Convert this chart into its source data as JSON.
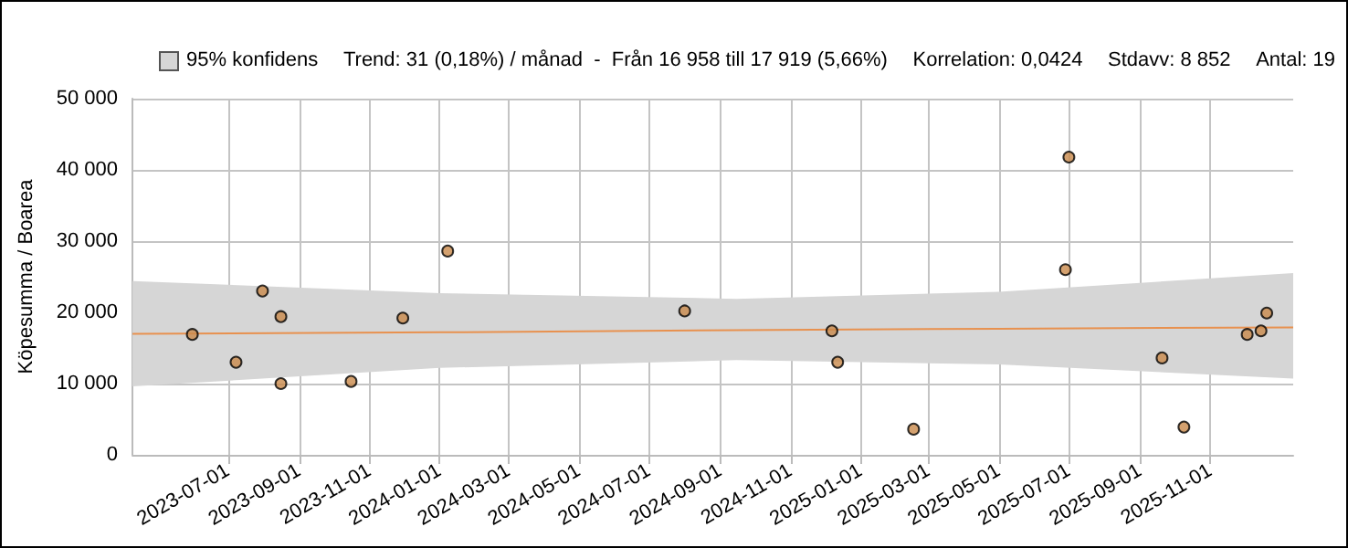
{
  "chart_data": {
    "type": "scatter",
    "ylabel": "Köpesumma / Boarea",
    "annotations": [
      "Trend: 31 (0,18%) / månad  -  Från 16 958 till 17 919 (5,66%)",
      "Korrelation: 0,0424",
      "Stdavv: 8 852",
      "Antal: 19"
    ],
    "series": [
      {
        "type": "line",
        "name": "95% konfidens",
        "color": "#e8914f",
        "marker": "none",
        "x": [
          "2023-04-09",
          "2024-01-01",
          "2024-09-15",
          "2025-05-01",
          "2026-01-12"
        ],
        "values": [
          17000,
          17200,
          17500,
          17700,
          17900
        ],
        "lower": [
          9600,
          12200,
          13300,
          12700,
          10700
        ],
        "upper": [
          24400,
          22700,
          21900,
          22900,
          25500
        ]
      },
      {
        "color": "#c98a4b",
        "x": [
          "2023-05-31",
          "2023-07-08",
          "2023-07-31",
          "2023-08-16",
          "2023-08-16",
          "2023-10-16",
          "2023-11-30",
          "2024-01-08",
          "2024-08-01",
          "2024-12-07",
          "2024-12-12",
          "2025-02-16",
          "2025-06-28",
          "2025-07-01",
          "2025-09-20",
          "2025-10-09",
          "2025-12-03",
          "2025-12-15",
          "2025-12-20"
        ],
        "values": [
          16900,
          13000,
          23000,
          19400,
          10000,
          10300,
          19200,
          28600,
          20200,
          17400,
          13000,
          3600,
          26000,
          41800,
          13600,
          3900,
          16900,
          17400,
          19900
        ]
      }
    ],
    "xlim": [
      "2023-04-09",
      "2026-01-12"
    ],
    "xticks": [
      "2023-07-01",
      "2023-09-01",
      "2023-11-01",
      "2024-01-01",
      "2024-03-01",
      "2024-05-01",
      "2024-07-01",
      "2024-09-01",
      "2024-11-01",
      "2025-01-01",
      "2025-03-01",
      "2025-05-01",
      "2025-07-01",
      "2025-09-01",
      "2025-11-01"
    ],
    "ylim": [
      0,
      50000
    ],
    "yticks": [
      0,
      {
        "value": 10000,
        "label": "10 000"
      },
      {
        "value": 20000,
        "label": "20 000"
      },
      {
        "value": 30000,
        "label": "30 000"
      },
      {
        "value": 40000,
        "label": "40 000"
      },
      {
        "value": 50000,
        "label": "50 000"
      }
    ],
    "grid": true,
    "legend": "top left",
    "marker": "circle"
  }
}
